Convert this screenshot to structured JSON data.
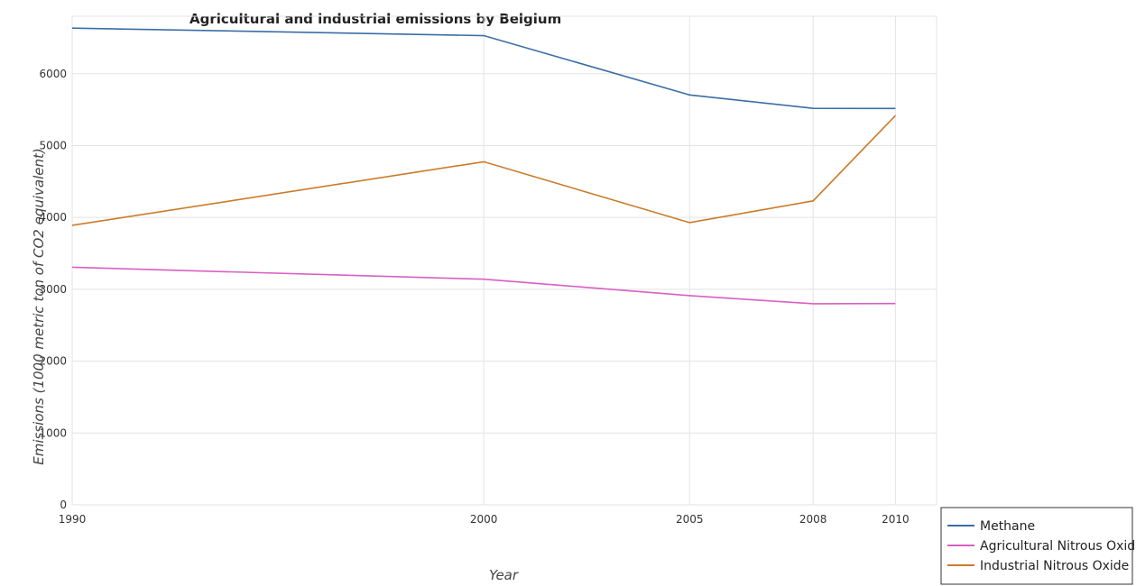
{
  "chart_data": {
    "type": "line",
    "title": "Agricultural and industrial emissions by Belgium",
    "xlabel": "Year",
    "ylabel": "Emissions (1000 metric ton of CO2 equivalent)",
    "categories": [
      "1990",
      "2000",
      "2005",
      "2008",
      "2010"
    ],
    "y_ticks": [
      "0",
      "1000",
      "2000",
      "3000",
      "4000",
      "5000",
      "6000"
    ],
    "ylim": [
      0,
      6800
    ],
    "grid": true,
    "legend_position": "bottom-right",
    "series": [
      {
        "name": "Methane",
        "color": "#3a6ea5",
        "values": [
          6635,
          6530,
          5705,
          5518,
          5516
        ]
      },
      {
        "name": "Agricultural Nitrous Oxide",
        "color": "#d95fc4",
        "values": [
          3307,
          3140,
          2912,
          2799,
          2802
        ]
      },
      {
        "name": "Industrial Nitrous Oxide",
        "color": "#cc7a29",
        "values": [
          3890,
          4775,
          3928,
          4230,
          5418
        ]
      }
    ]
  }
}
